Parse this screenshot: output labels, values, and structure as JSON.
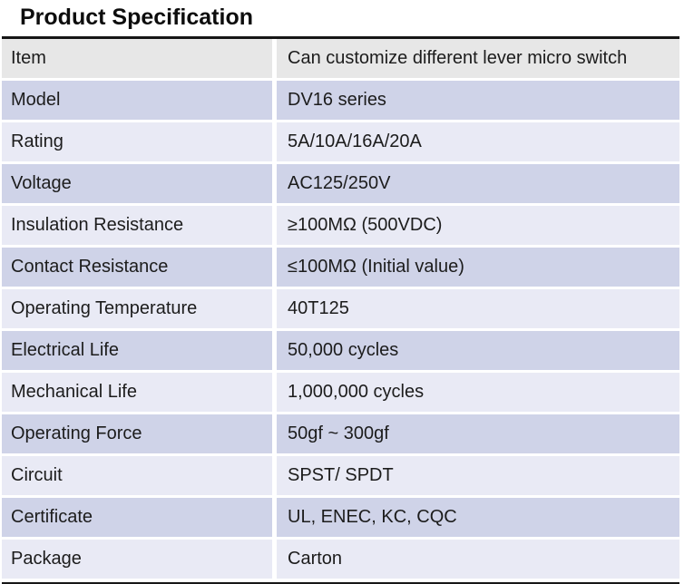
{
  "title": "Product Specification",
  "table": {
    "colors": {
      "gray": "#e7e7e7",
      "dark": "#cfd3e8",
      "light": "#e9eaf5",
      "border": "#161616",
      "text": "#1c1c1c"
    },
    "rows": [
      {
        "label": "Item",
        "value": "Can customize different lever micro switch",
        "shade": "gray"
      },
      {
        "label": "Model",
        "value": "DV16 series",
        "shade": "dark"
      },
      {
        "label": "Rating",
        "value": "5A/10A/16A/20A",
        "shade": "light"
      },
      {
        "label": "Voltage",
        "value": "AC125/250V",
        "shade": "dark"
      },
      {
        "label": "Insulation Resistance",
        "value": "≥100MΩ (500VDC)",
        "shade": "light"
      },
      {
        "label": "Contact Resistance",
        "value": "≤100MΩ (Initial value)",
        "shade": "dark"
      },
      {
        "label": "Operating Temperature",
        "value": "40T125",
        "shade": "light"
      },
      {
        "label": "Electrical Life",
        "value": "50,000 cycles",
        "shade": "dark"
      },
      {
        "label": "Mechanical Life",
        "value": "1,000,000 cycles",
        "shade": "light"
      },
      {
        "label": "Operating Force",
        "value": "50gf ~ 300gf",
        "shade": "dark"
      },
      {
        "label": "Circuit",
        "value": "SPST/ SPDT",
        "shade": "light"
      },
      {
        "label": "Certificate",
        "value": "UL, ENEC, KC, CQC",
        "shade": "dark"
      },
      {
        "label": "Package",
        "value": "Carton",
        "shade": "light"
      }
    ]
  }
}
